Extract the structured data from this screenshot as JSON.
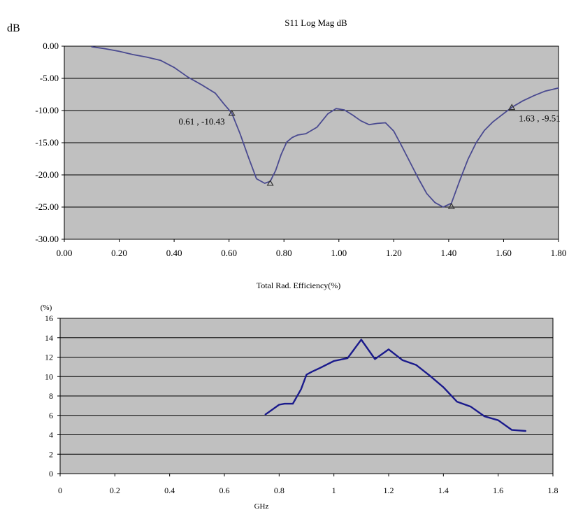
{
  "chart_data": [
    {
      "type": "line",
      "title": "S11 Log Mag dB",
      "xlabel": "",
      "ylabel": "dB",
      "xlim": [
        0,
        1.8
      ],
      "ylim": [
        -30,
        0
      ],
      "x_ticks": [
        "0.00",
        "0.20",
        "0.40",
        "0.60",
        "0.80",
        "1.00",
        "1.20",
        "1.40",
        "1.60",
        "1.80"
      ],
      "y_ticks": [
        "0.00",
        "-5.00",
        "-10.00",
        "-15.00",
        "-20.00",
        "-25.00",
        "-30.00"
      ],
      "grid": "horizontal",
      "series": [
        {
          "color": "#4a4a90",
          "x": [
            0.1,
            0.15,
            0.2,
            0.25,
            0.3,
            0.35,
            0.4,
            0.45,
            0.5,
            0.55,
            0.58,
            0.61,
            0.64,
            0.67,
            0.7,
            0.73,
            0.75,
            0.77,
            0.79,
            0.81,
            0.83,
            0.85,
            0.88,
            0.92,
            0.96,
            0.99,
            1.02,
            1.05,
            1.08,
            1.11,
            1.14,
            1.17,
            1.2,
            1.23,
            1.26,
            1.29,
            1.32,
            1.35,
            1.38,
            1.41,
            1.44,
            1.47,
            1.5,
            1.53,
            1.56,
            1.59,
            1.63,
            1.67,
            1.71,
            1.75,
            1.8
          ],
          "y": [
            -0.1,
            -0.4,
            -0.8,
            -1.3,
            -1.7,
            -2.2,
            -3.3,
            -4.8,
            -6.0,
            -7.3,
            -8.9,
            -10.4,
            -13.6,
            -17.2,
            -20.6,
            -21.3,
            -21.0,
            -19.3,
            -16.8,
            -14.9,
            -14.2,
            -13.8,
            -13.6,
            -12.6,
            -10.5,
            -9.7,
            -9.9,
            -10.7,
            -11.6,
            -12.2,
            -12.0,
            -11.9,
            -13.2,
            -15.6,
            -18.1,
            -20.6,
            -22.9,
            -24.3,
            -25.0,
            -24.4,
            -20.9,
            -17.6,
            -15.0,
            -13.1,
            -11.8,
            -10.8,
            -9.5,
            -8.5,
            -7.7,
            -7.0,
            -6.5
          ]
        }
      ],
      "markers": [
        {
          "x": 0.61,
          "y": -10.43,
          "label": "0.61 , -10.43",
          "label_side": "left"
        },
        {
          "x": 0.75,
          "y": -21.3,
          "label": "",
          "label_side": "none"
        },
        {
          "x": 1.41,
          "y": -24.9,
          "label": "",
          "label_side": "none"
        },
        {
          "x": 1.63,
          "y": -9.51,
          "label": "1.63 , -9.51",
          "label_side": "right"
        }
      ]
    },
    {
      "type": "line",
      "title": "Total Rad. Efficiency(%)",
      "xlabel": "GHz",
      "ylabel": "(%)",
      "xlim": [
        0,
        1.8
      ],
      "ylim": [
        0,
        16
      ],
      "x_ticks": [
        "0",
        "0.2",
        "0.4",
        "0.6",
        "0.8",
        "1",
        "1.2",
        "1.4",
        "1.6",
        "1.8"
      ],
      "y_ticks": [
        "0",
        "2",
        "4",
        "6",
        "8",
        "10",
        "12",
        "14",
        "16"
      ],
      "grid": "horizontal",
      "series": [
        {
          "color": "#1a1a8c",
          "x": [
            0.75,
            0.8,
            0.82,
            0.85,
            0.88,
            0.9,
            0.92,
            0.95,
            1.0,
            1.05,
            1.1,
            1.15,
            1.2,
            1.25,
            1.3,
            1.35,
            1.4,
            1.45,
            1.5,
            1.55,
            1.6,
            1.65,
            1.7
          ],
          "y": [
            6.1,
            7.1,
            7.2,
            7.2,
            8.7,
            10.2,
            10.5,
            10.9,
            11.6,
            11.9,
            13.8,
            11.8,
            12.8,
            11.7,
            11.2,
            10.1,
            8.9,
            7.4,
            6.9,
            5.9,
            5.5,
            4.5,
            4.4
          ]
        }
      ]
    }
  ]
}
